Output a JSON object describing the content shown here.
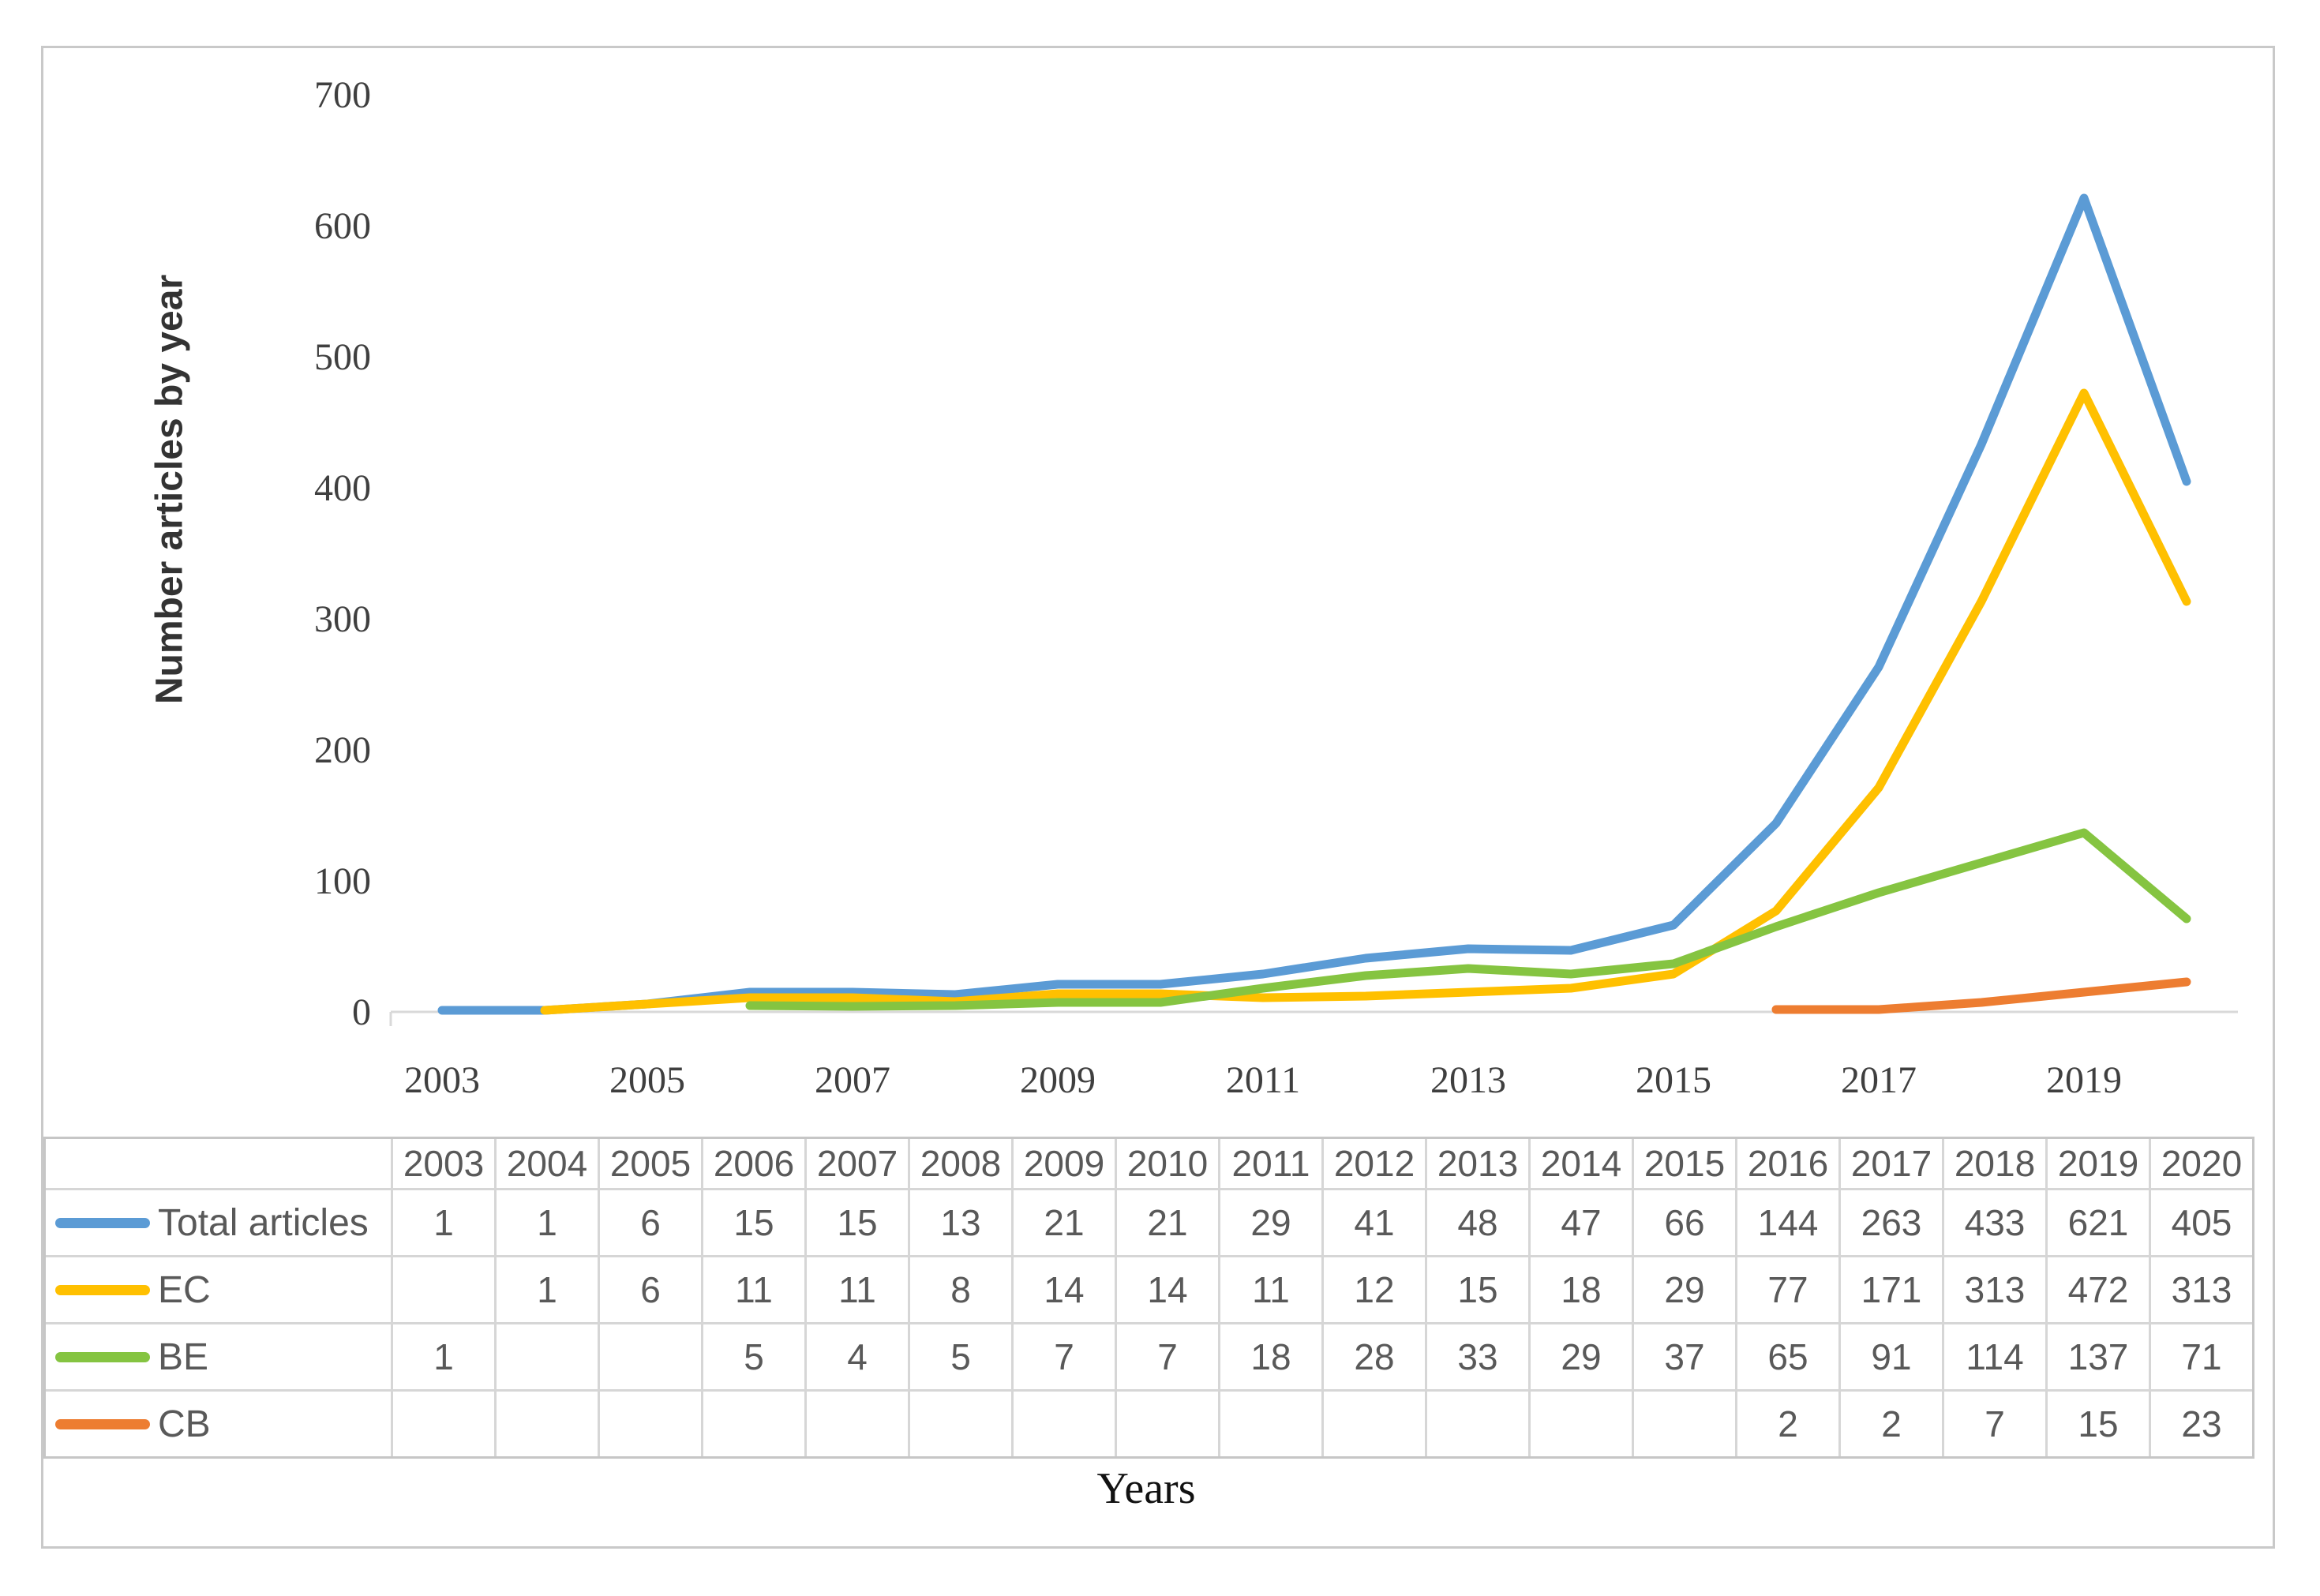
{
  "figure": {
    "background": "#FFFFFF",
    "border_color": "#C9C9C9"
  },
  "chart_data": {
    "type": "line",
    "title": "",
    "ylabel": "Number articles by year",
    "xlabel": "Years",
    "ylim": [
      0,
      700
    ],
    "yticks": [
      0,
      100,
      200,
      300,
      400,
      500,
      600,
      700
    ],
    "xtick_labels": [
      "2003",
      "2005",
      "2007",
      "2009",
      "2011",
      "2013",
      "2015",
      "2017",
      "2019"
    ],
    "grid": false,
    "legend_position": "data-table-left",
    "categories": [
      "2003",
      "2004",
      "2005",
      "2006",
      "2007",
      "2008",
      "2009",
      "2010",
      "2011",
      "2012",
      "2013",
      "2014",
      "2015",
      "2016",
      "2017",
      "2018",
      "2019",
      "2020"
    ],
    "series": [
      {
        "name": "Total articles",
        "slug": "total-articles",
        "color": "#5B9BD5",
        "values": [
          1,
          1,
          6,
          15,
          15,
          13,
          21,
          21,
          29,
          41,
          48,
          47,
          66,
          144,
          263,
          433,
          621,
          405
        ]
      },
      {
        "name": "EC",
        "slug": "ec",
        "color": "#FFC000",
        "values": [
          null,
          1,
          6,
          11,
          11,
          8,
          14,
          14,
          11,
          12,
          15,
          18,
          29,
          77,
          171,
          313,
          472,
          313
        ]
      },
      {
        "name": "BE",
        "slug": "be",
        "color": "#85C441",
        "values": [
          1,
          null,
          null,
          5,
          4,
          5,
          7,
          7,
          18,
          28,
          33,
          29,
          37,
          65,
          91,
          114,
          137,
          71
        ]
      },
      {
        "name": "CB",
        "slug": "cb",
        "color": "#ED7D31",
        "values": [
          null,
          null,
          null,
          null,
          null,
          null,
          null,
          null,
          null,
          null,
          null,
          null,
          null,
          2,
          2,
          7,
          15,
          23
        ]
      }
    ]
  },
  "styles": {
    "axis_line_color": "#D9D9D9",
    "tick_label_color": "#3F3F3F",
    "table_grid_color": "#D6D6D6",
    "table_text_color": "#595959"
  }
}
